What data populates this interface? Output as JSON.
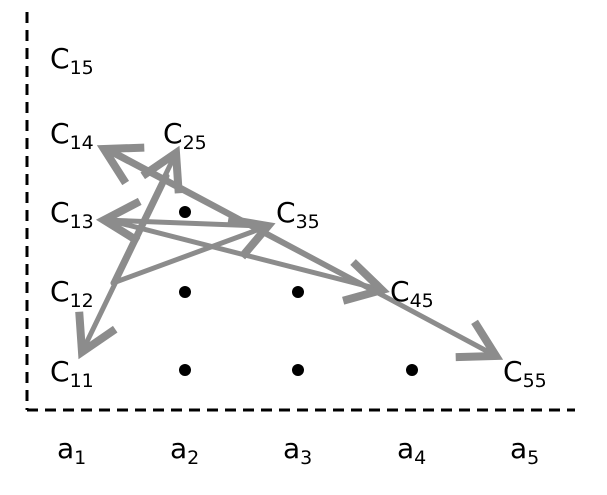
{
  "diagram": {
    "columns": [
      {
        "base": "a",
        "sub": "1"
      },
      {
        "base": "a",
        "sub": "2"
      },
      {
        "base": "a",
        "sub": "3"
      },
      {
        "base": "a",
        "sub": "4"
      },
      {
        "base": "a",
        "sub": "5"
      }
    ],
    "cells": [
      {
        "id": "C15",
        "base": "C",
        "sub": "15"
      },
      {
        "id": "C14",
        "base": "C",
        "sub": "14"
      },
      {
        "id": "C13",
        "base": "C",
        "sub": "13"
      },
      {
        "id": "C12",
        "base": "C",
        "sub": "12"
      },
      {
        "id": "C11",
        "base": "C",
        "sub": "11"
      },
      {
        "id": "C25",
        "base": "C",
        "sub": "25"
      },
      {
        "id": "C35",
        "base": "C",
        "sub": "35"
      },
      {
        "id": "C45",
        "base": "C",
        "sub": "45"
      },
      {
        "id": "C55",
        "base": "C",
        "sub": "55"
      }
    ],
    "dot_count": 6,
    "arrows": [
      {
        "from": "C25",
        "to": "C11"
      },
      {
        "from": "C12",
        "to": "C25"
      },
      {
        "from": "C12",
        "to": "C35"
      },
      {
        "from": "C35",
        "to": "C13"
      },
      {
        "from": "C13",
        "to": "C45"
      },
      {
        "from": "C45",
        "to": "C14"
      },
      {
        "from": "C14",
        "to": "C55"
      }
    ],
    "colors": {
      "arrow": "#8c8c8c",
      "axis": "#000000",
      "text": "#000000",
      "dot": "#000000"
    }
  }
}
